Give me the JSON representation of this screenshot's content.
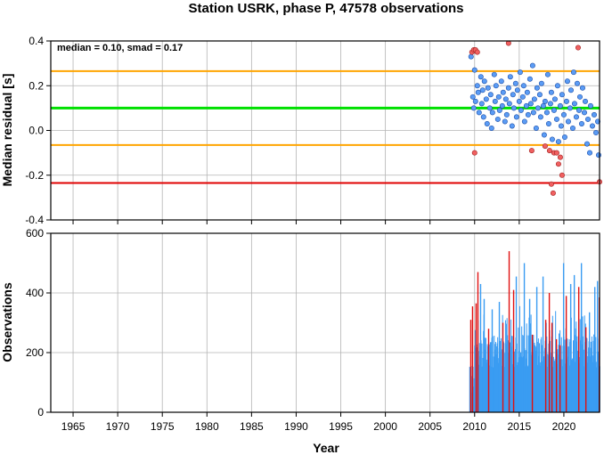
{
  "title": "Station USRK, phase P, 47578 observations",
  "annotation": "median = 0.10, smad = 0.17",
  "colors": {
    "median_line": "#00e000",
    "smad_line": "#ffa500",
    "lower_line": "#e00000",
    "point_in": "#5b9cf5",
    "point_out": "#f06060",
    "bar_in": "#3a9cf2",
    "bar_out": "#e01010",
    "grid": "#b4b4b4"
  },
  "chart_data": [
    {
      "type": "scatter",
      "ylabel": "Median residual [s]",
      "xlim": [
        1962.5,
        2024
      ],
      "ylim": [
        -0.4,
        0.4
      ],
      "x_ticks": [
        1965,
        1970,
        1975,
        1980,
        1985,
        1990,
        1995,
        2000,
        2005,
        2010,
        2015,
        2020
      ],
      "y_ticks": [
        -0.4,
        -0.2,
        0.0,
        0.2,
        0.4
      ],
      "y_tick_labels": [
        "-0.4",
        "-0.2",
        "0.0",
        "0.2",
        "0.4"
      ],
      "grid": true,
      "reference_lines": {
        "median": 0.1,
        "upper": 0.265,
        "lower_smad": -0.065,
        "lower": -0.235
      },
      "points_in_range": [
        [
          2009.6,
          0.33
        ],
        [
          2009.8,
          0.15
        ],
        [
          2009.9,
          0.1
        ],
        [
          2010.0,
          0.27
        ],
        [
          2010.1,
          0.13
        ],
        [
          2010.3,
          0.2
        ],
        [
          2010.4,
          0.17
        ],
        [
          2010.5,
          0.08
        ],
        [
          2010.7,
          0.24
        ],
        [
          2010.8,
          0.12
        ],
        [
          2010.9,
          0.18
        ],
        [
          2011.0,
          0.06
        ],
        [
          2011.1,
          0.22
        ],
        [
          2011.3,
          0.14
        ],
        [
          2011.4,
          0.03
        ],
        [
          2011.5,
          0.19
        ],
        [
          2011.7,
          0.1
        ],
        [
          2011.8,
          0.16
        ],
        [
          2011.9,
          0.01
        ],
        [
          2012.0,
          0.08
        ],
        [
          2012.2,
          0.25
        ],
        [
          2012.3,
          0.13
        ],
        [
          2012.4,
          0.2
        ],
        [
          2012.6,
          0.05
        ],
        [
          2012.7,
          0.15
        ],
        [
          2012.8,
          0.09
        ],
        [
          2013.0,
          0.22
        ],
        [
          2013.1,
          0.11
        ],
        [
          2013.2,
          0.17
        ],
        [
          2013.4,
          0.04
        ],
        [
          2013.5,
          0.14
        ],
        [
          2013.6,
          0.07
        ],
        [
          2013.8,
          0.19
        ],
        [
          2013.9,
          0.12
        ],
        [
          2014.0,
          0.24
        ],
        [
          2014.2,
          0.02
        ],
        [
          2014.3,
          0.16
        ],
        [
          2014.4,
          0.1
        ],
        [
          2014.6,
          0.21
        ],
        [
          2014.7,
          0.06
        ],
        [
          2014.8,
          0.18
        ],
        [
          2015.0,
          0.13
        ],
        [
          2015.1,
          0.26
        ],
        [
          2015.2,
          0.09
        ],
        [
          2015.4,
          0.15
        ],
        [
          2015.5,
          0.2
        ],
        [
          2015.6,
          0.04
        ],
        [
          2015.8,
          0.11
        ],
        [
          2015.9,
          0.17
        ],
        [
          2016.0,
          0.07
        ],
        [
          2016.2,
          0.23
        ],
        [
          2016.3,
          0.12
        ],
        [
          2016.5,
          0.29
        ],
        [
          2016.6,
          0.08
        ],
        [
          2016.7,
          0.14
        ],
        [
          2016.9,
          0.01
        ],
        [
          2017.0,
          0.19
        ],
        [
          2017.1,
          0.1
        ],
        [
          2017.3,
          0.16
        ],
        [
          2017.4,
          0.06
        ],
        [
          2017.5,
          0.21
        ],
        [
          2017.7,
          0.11
        ],
        [
          2017.8,
          -0.02
        ],
        [
          2017.9,
          0.13
        ],
        [
          2018.1,
          0.08
        ],
        [
          2018.2,
          0.25
        ],
        [
          2018.3,
          0.03
        ],
        [
          2018.5,
          0.12
        ],
        [
          2018.6,
          0.17
        ],
        [
          2018.7,
          -0.04
        ],
        [
          2018.9,
          0.09
        ],
        [
          2019.0,
          0.14
        ],
        [
          2019.2,
          0.05
        ],
        [
          2019.3,
          0.2
        ],
        [
          2019.4,
          -0.05
        ],
        [
          2019.6,
          0.11
        ],
        [
          2019.7,
          0.02
        ],
        [
          2019.8,
          0.16
        ],
        [
          2020.0,
          0.07
        ],
        [
          2020.1,
          -0.03
        ],
        [
          2020.3,
          0.13
        ],
        [
          2020.4,
          0.22
        ],
        [
          2020.5,
          0.04
        ],
        [
          2020.7,
          0.1
        ],
        [
          2020.8,
          0.18
        ],
        [
          2021.0,
          0.01
        ],
        [
          2021.1,
          0.26
        ],
        [
          2021.2,
          0.12
        ],
        [
          2021.4,
          0.06
        ],
        [
          2021.5,
          0.21
        ],
        [
          2021.7,
          0.09
        ],
        [
          2021.8,
          0.15
        ],
        [
          2022.0,
          0.03
        ],
        [
          2022.1,
          0.19
        ],
        [
          2022.3,
          0.08
        ],
        [
          2022.4,
          0.13
        ],
        [
          2022.6,
          -0.06
        ],
        [
          2022.7,
          0.05
        ],
        [
          2022.9,
          -0.1
        ],
        [
          2023.0,
          0.11
        ],
        [
          2023.2,
          0.02
        ],
        [
          2023.4,
          0.07
        ],
        [
          2023.6,
          -0.01
        ],
        [
          2023.8,
          0.04
        ],
        [
          2023.9,
          -0.11
        ]
      ],
      "points_outliers": [
        [
          2009.7,
          0.35
        ],
        [
          2009.9,
          0.36
        ],
        [
          2010.1,
          0.36
        ],
        [
          2010.3,
          0.35
        ],
        [
          2010.0,
          -0.1
        ],
        [
          2013.8,
          0.39
        ],
        [
          2016.4,
          -0.09
        ],
        [
          2017.9,
          -0.07
        ],
        [
          2018.4,
          -0.09
        ],
        [
          2018.6,
          -0.24
        ],
        [
          2018.8,
          -0.28
        ],
        [
          2018.9,
          -0.1
        ],
        [
          2019.2,
          -0.1
        ],
        [
          2019.4,
          -0.15
        ],
        [
          2019.6,
          -0.12
        ],
        [
          2019.8,
          -0.2
        ],
        [
          2021.6,
          0.37
        ],
        [
          2024.0,
          -0.23
        ]
      ]
    },
    {
      "type": "bar",
      "xlabel": "Year",
      "ylabel": "Observations",
      "xlim": [
        1962.5,
        2024
      ],
      "ylim": [
        0,
        600
      ],
      "x_ticks": [
        1965,
        1970,
        1975,
        1980,
        1985,
        1990,
        1995,
        2000,
        2005,
        2010,
        2015,
        2020
      ],
      "x_tick_labels": [
        "1965",
        "1970",
        "1975",
        "1980",
        "1985",
        "1990",
        "1995",
        "2000",
        "2005",
        "2010",
        "2015",
        "2020"
      ],
      "y_ticks": [
        0,
        200,
        400,
        600
      ],
      "y_tick_labels": [
        "0",
        "200",
        "400",
        "600"
      ],
      "grid": true,
      "period": [
        2009.4,
        2024.0
      ],
      "bar_width_years": 0.055,
      "outlier_bars": [
        [
          2009.5,
          310
        ],
        [
          2009.7,
          355
        ],
        [
          2010.1,
          365
        ],
        [
          2010.3,
          470
        ],
        [
          2011.5,
          280
        ],
        [
          2013.1,
          300
        ],
        [
          2013.8,
          540
        ],
        [
          2014.3,
          410
        ],
        [
          2016.4,
          260
        ],
        [
          2017.9,
          310
        ],
        [
          2018.3,
          400
        ],
        [
          2018.6,
          300
        ],
        [
          2019.1,
          245
        ],
        [
          2019.5,
          225
        ],
        [
          2020.2,
          390
        ],
        [
          2021.6,
          420
        ],
        [
          2022.4,
          285
        ],
        [
          2023.9,
          385
        ]
      ],
      "peak_bars": [
        [
          2010.6,
          430
        ],
        [
          2011.0,
          380
        ],
        [
          2011.9,
          345
        ],
        [
          2012.7,
          370
        ],
        [
          2014.6,
          455
        ],
        [
          2015.5,
          500
        ],
        [
          2016.1,
          380
        ],
        [
          2016.9,
          420
        ],
        [
          2017.6,
          455
        ],
        [
          2019.9,
          500
        ],
        [
          2020.7,
          430
        ],
        [
          2021.1,
          460
        ],
        [
          2021.9,
          500
        ],
        [
          2022.8,
          335
        ],
        [
          2023.4,
          420
        ],
        [
          2023.7,
          440
        ]
      ]
    }
  ]
}
